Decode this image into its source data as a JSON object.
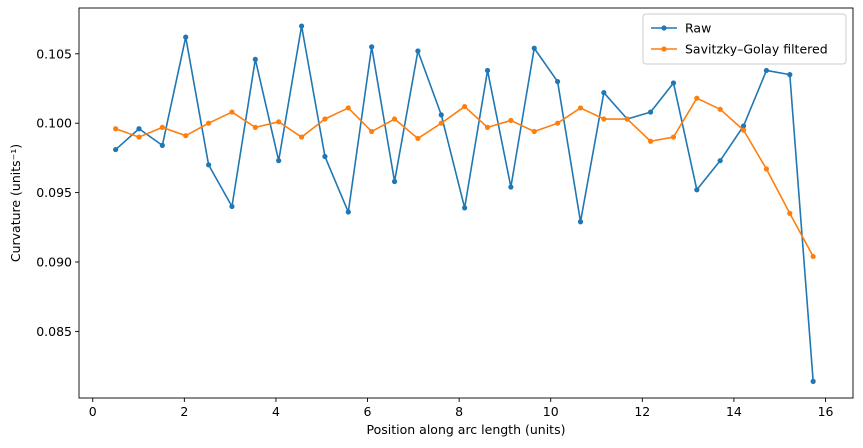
{
  "chart_data": {
    "type": "line",
    "xlabel": "Position along arc length (units)",
    "ylabel": "Curvature (units⁻¹)",
    "xlim": [
      -0.3,
      16.6
    ],
    "ylim": [
      0.0802,
      0.1083
    ],
    "xticks": [
      0,
      2,
      4,
      6,
      8,
      10,
      12,
      14,
      16
    ],
    "yticks": [
      0.085,
      0.09,
      0.095,
      0.1,
      0.105
    ],
    "xtick_labels": [
      "0",
      "2",
      "4",
      "6",
      "8",
      "10",
      "12",
      "14",
      "16"
    ],
    "ytick_labels": [
      "0.085",
      "0.090",
      "0.095",
      "0.100",
      "0.105"
    ],
    "grid": false,
    "legend_position": "top-right",
    "x": [
      0.5,
      1.01,
      1.52,
      2.03,
      2.53,
      3.04,
      3.55,
      4.06,
      4.56,
      5.07,
      5.58,
      6.09,
      6.59,
      7.1,
      7.61,
      8.12,
      8.62,
      9.13,
      9.64,
      10.15,
      10.65,
      11.16,
      11.67,
      12.18,
      12.68,
      13.19,
      13.7,
      14.21,
      14.71,
      15.22,
      15.73
    ],
    "series": [
      {
        "name": "Raw",
        "color": "#1f77b4",
        "values": [
          0.0981,
          0.0996,
          0.0984,
          0.1062,
          0.097,
          0.094,
          0.1046,
          0.0973,
          0.107,
          0.0976,
          0.0936,
          0.1055,
          0.0958,
          0.1052,
          0.1006,
          0.0939,
          0.1038,
          0.0954,
          0.1054,
          0.103,
          0.0929,
          0.1022,
          0.1003,
          0.1008,
          0.1029,
          0.0952,
          0.0973,
          0.0998,
          0.1038,
          0.1035,
          0.0814
        ]
      },
      {
        "name": "Savitzky–Golay filtered",
        "color": "#ff7f0e",
        "values": [
          0.0996,
          0.099,
          0.0997,
          0.0991,
          0.1,
          0.1008,
          0.0997,
          0.1001,
          0.099,
          0.1003,
          0.1011,
          0.0994,
          0.1003,
          0.0989,
          0.1,
          0.1012,
          0.0997,
          0.1002,
          0.0994,
          0.1,
          0.1011,
          0.1003,
          0.1003,
          0.0987,
          0.099,
          0.1018,
          0.101,
          0.0995,
          0.0967,
          0.0935,
          0.0904
        ]
      }
    ]
  }
}
